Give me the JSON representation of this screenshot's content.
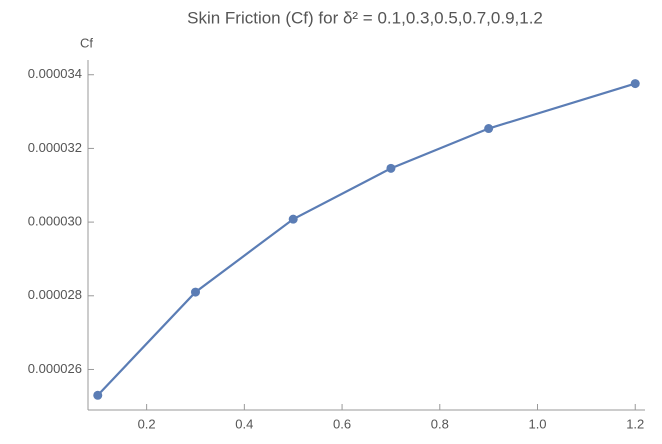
{
  "chart_data": {
    "type": "line",
    "title": "Skin Friction (Cf) for δ² = 0.1,0.3,0.5,0.7,0.9,1.2",
    "y_label": "Cf",
    "x": [
      0.1,
      0.3,
      0.5,
      0.7,
      0.9,
      1.2
    ],
    "series": [
      {
        "name": "Cf",
        "color": "#5b7db5",
        "values": [
          2.53e-05,
          2.81e-05,
          3.008e-05,
          3.146e-05,
          3.254e-05,
          3.376e-05
        ]
      }
    ],
    "xlim": [
      0.08,
      1.22
    ],
    "xticks": [
      0.2,
      0.4,
      0.6,
      0.8,
      {
        "value": 1,
        "label": "1.0"
      },
      1.2
    ],
    "ylim": [
      2.49e-05,
      3.44e-05
    ],
    "yticks": [
      {
        "value": 2.6e-05,
        "label": "0.000026"
      },
      {
        "value": 2.8e-05,
        "label": "0.000028"
      },
      {
        "value": 3e-05,
        "label": "0.000030"
      },
      {
        "value": 3.2e-05,
        "label": "0.000032"
      },
      {
        "value": 3.4e-05,
        "label": "0.000034"
      }
    ]
  }
}
